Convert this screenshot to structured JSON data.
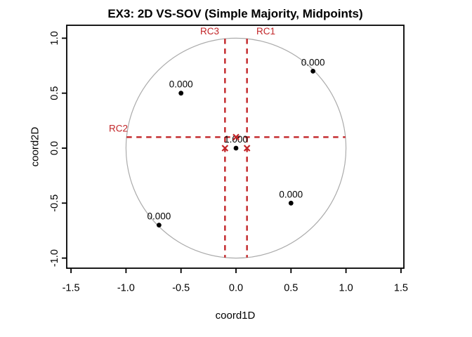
{
  "chart_data": {
    "type": "scatter",
    "title": "EX3: 2D VS-SOV (Simple Majority, Midpoints)",
    "xlabel": "coord1D",
    "ylabel": "coord2D",
    "xlim": [
      -1.5,
      1.5
    ],
    "ylim": [
      -1.0,
      1.0
    ],
    "grid": false,
    "xticks": [
      {
        "v": -1.5,
        "label": "-1.5"
      },
      {
        "v": -1.0,
        "label": "-1.0"
      },
      {
        "v": -0.5,
        "label": "-0.5"
      },
      {
        "v": 0.0,
        "label": "0.0"
      },
      {
        "v": 0.5,
        "label": "0.5"
      },
      {
        "v": 1.0,
        "label": "1.0"
      },
      {
        "v": 1.5,
        "label": "1.5"
      }
    ],
    "yticks": [
      {
        "v": 1.0,
        "label": "1.0"
      },
      {
        "v": 0.5,
        "label": "0.5"
      },
      {
        "v": 0.0,
        "label": "0.0"
      },
      {
        "v": -0.5,
        "label": "-0.5"
      },
      {
        "v": -1.0,
        "label": "-1.0"
      }
    ],
    "unit_circle": {
      "cx": 0,
      "cy": 0,
      "r": 1.0
    },
    "points": [
      {
        "x": -0.5,
        "y": 0.5,
        "label": "0.000"
      },
      {
        "x": 0.7,
        "y": 0.7,
        "label": "0.000"
      },
      {
        "x": 0.0,
        "y": 0.0,
        "label": "1.000"
      },
      {
        "x": 0.5,
        "y": -0.5,
        "label": "0.000"
      },
      {
        "x": -0.7,
        "y": -0.7,
        "label": "0.000"
      }
    ],
    "cutting_lines": [
      {
        "name": "RC1",
        "orientation": "vertical",
        "position": 0.1,
        "span": [
          -0.995,
          0.995
        ],
        "midpoint": [
          0.1,
          0.0
        ]
      },
      {
        "name": "RC2",
        "orientation": "horizontal",
        "position": 0.1,
        "span": [
          -0.995,
          0.995
        ],
        "midpoint": [
          0.0,
          0.1
        ]
      },
      {
        "name": "RC3",
        "orientation": "vertical",
        "position": -0.1,
        "span": [
          -0.995,
          0.995
        ],
        "midpoint": [
          -0.1,
          0.0
        ]
      }
    ],
    "colors": {
      "points": "#000000",
      "point_labels": "#000000",
      "cutting_lines": "#C22528",
      "circle": "#ABABAB",
      "axes": "#000000",
      "background": "#FFFFFF"
    }
  }
}
